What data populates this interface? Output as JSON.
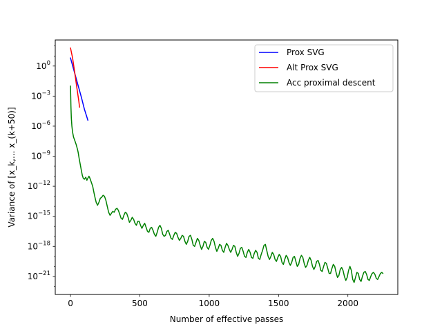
{
  "chart_data": {
    "type": "line",
    "title": "",
    "xlabel": "Number of effective passes",
    "ylabel": "Variance of [x_k,... x_(k+50)]",
    "xlim": [
      -110,
      2360
    ],
    "ylim_log10": [
      -22.8,
      2.6
    ],
    "yscale": "log",
    "grid": false,
    "legend_position": "upper-right",
    "x_ticks": [
      0,
      500,
      1000,
      1500,
      2000
    ],
    "y_ticks": [
      {
        "exp": 0,
        "label": "10",
        "sup": "0"
      },
      {
        "exp": -3,
        "label": "10",
        "sup": "−3"
      },
      {
        "exp": -6,
        "label": "10",
        "sup": "−6"
      },
      {
        "exp": -9,
        "label": "10",
        "sup": "−9"
      },
      {
        "exp": -12,
        "label": "10",
        "sup": "−12"
      },
      {
        "exp": -15,
        "label": "10",
        "sup": "−15"
      },
      {
        "exp": -18,
        "label": "10",
        "sup": "−18"
      },
      {
        "exp": -21,
        "label": "10",
        "sup": "−21"
      }
    ],
    "series": [
      {
        "name": "Prox SVG",
        "color": "#0000ff",
        "points": [
          [
            0,
            0.8
          ],
          [
            20,
            -0.2
          ],
          [
            40,
            -1.2
          ],
          [
            60,
            -2.2
          ],
          [
            80,
            -3.2
          ],
          [
            100,
            -4.3
          ],
          [
            125,
            -5.4
          ]
        ]
      },
      {
        "name": "Alt Prox SVG",
        "color": "#ff0000",
        "points": [
          [
            0,
            1.8
          ],
          [
            15,
            0.8
          ],
          [
            30,
            -0.6
          ],
          [
            45,
            -2.1
          ],
          [
            60,
            -3.5
          ],
          [
            65,
            -4.1
          ]
        ]
      },
      {
        "name": "Acc proximal descent",
        "color": "#008000",
        "points": [
          [
            0,
            -2.0
          ],
          [
            3,
            -4.0
          ],
          [
            6,
            -5.2
          ],
          [
            10,
            -6.0
          ],
          [
            15,
            -6.6
          ],
          [
            22,
            -7.1
          ],
          [
            30,
            -7.4
          ],
          [
            40,
            -7.8
          ],
          [
            50,
            -8.3
          ],
          [
            55,
            -8.6
          ],
          [
            62,
            -9.2
          ],
          [
            70,
            -9.8
          ],
          [
            78,
            -10.4
          ],
          [
            85,
            -10.9
          ],
          [
            92,
            -11.2
          ],
          [
            100,
            -11.3
          ],
          [
            110,
            -11.1
          ],
          [
            118,
            -11.4
          ],
          [
            125,
            -11.2
          ],
          [
            133,
            -11.0
          ],
          [
            140,
            -11.2
          ],
          [
            150,
            -11.6
          ],
          [
            160,
            -12.0
          ],
          [
            170,
            -12.7
          ],
          [
            178,
            -13.2
          ],
          [
            185,
            -13.6
          ],
          [
            195,
            -13.9
          ],
          [
            205,
            -13.6
          ],
          [
            215,
            -13.2
          ],
          [
            225,
            -13.1
          ],
          [
            235,
            -12.9
          ],
          [
            245,
            -13.0
          ],
          [
            255,
            -13.4
          ],
          [
            265,
            -14.0
          ],
          [
            275,
            -14.6
          ],
          [
            285,
            -14.9
          ],
          [
            295,
            -14.7
          ],
          [
            305,
            -14.5
          ],
          [
            315,
            -14.6
          ],
          [
            325,
            -14.3
          ],
          [
            335,
            -14.2
          ],
          [
            345,
            -14.4
          ],
          [
            355,
            -14.8
          ],
          [
            365,
            -15.2
          ],
          [
            375,
            -15.3
          ],
          [
            385,
            -14.9
          ],
          [
            395,
            -14.6
          ],
          [
            405,
            -14.7
          ],
          [
            415,
            -15.1
          ],
          [
            425,
            -15.6
          ],
          [
            435,
            -15.4
          ],
          [
            445,
            -15.1
          ],
          [
            455,
            -15.3
          ],
          [
            465,
            -15.7
          ],
          [
            475,
            -15.9
          ],
          [
            485,
            -15.5
          ],
          [
            495,
            -15.5
          ],
          [
            505,
            -15.9
          ],
          [
            515,
            -16.2
          ],
          [
            525,
            -15.9
          ],
          [
            535,
            -15.7
          ],
          [
            545,
            -16.1
          ],
          [
            555,
            -16.5
          ],
          [
            565,
            -16.6
          ],
          [
            575,
            -16.2
          ],
          [
            585,
            -16.1
          ],
          [
            595,
            -16.4
          ],
          [
            605,
            -16.8
          ],
          [
            615,
            -17.0
          ],
          [
            625,
            -16.6
          ],
          [
            635,
            -16.1
          ],
          [
            645,
            -15.9
          ],
          [
            655,
            -16.2
          ],
          [
            665,
            -16.8
          ],
          [
            675,
            -17.0
          ],
          [
            685,
            -16.9
          ],
          [
            695,
            -16.5
          ],
          [
            705,
            -16.4
          ],
          [
            715,
            -16.8
          ],
          [
            725,
            -17.2
          ],
          [
            735,
            -17.3
          ],
          [
            745,
            -16.9
          ],
          [
            755,
            -16.6
          ],
          [
            765,
            -16.7
          ],
          [
            775,
            -17.1
          ],
          [
            785,
            -17.4
          ],
          [
            795,
            -17.2
          ],
          [
            805,
            -16.9
          ],
          [
            815,
            -17.0
          ],
          [
            825,
            -17.5
          ],
          [
            835,
            -17.8
          ],
          [
            845,
            -17.5
          ],
          [
            855,
            -17.0
          ],
          [
            865,
            -16.9
          ],
          [
            875,
            -17.3
          ],
          [
            885,
            -17.9
          ],
          [
            895,
            -18.0
          ],
          [
            905,
            -17.6
          ],
          [
            915,
            -17.2
          ],
          [
            925,
            -17.4
          ],
          [
            935,
            -17.9
          ],
          [
            945,
            -18.3
          ],
          [
            955,
            -18.0
          ],
          [
            965,
            -17.5
          ],
          [
            975,
            -17.6
          ],
          [
            985,
            -18.1
          ],
          [
            995,
            -18.3
          ],
          [
            1005,
            -17.9
          ],
          [
            1015,
            -17.4
          ],
          [
            1025,
            -17.2
          ],
          [
            1035,
            -17.5
          ],
          [
            1045,
            -18.1
          ],
          [
            1055,
            -18.5
          ],
          [
            1065,
            -18.2
          ],
          [
            1075,
            -17.8
          ],
          [
            1085,
            -17.9
          ],
          [
            1095,
            -18.4
          ],
          [
            1105,
            -18.6
          ],
          [
            1115,
            -18.1
          ],
          [
            1125,
            -17.7
          ],
          [
            1135,
            -17.9
          ],
          [
            1145,
            -18.3
          ],
          [
            1155,
            -18.6
          ],
          [
            1165,
            -18.3
          ],
          [
            1175,
            -17.9
          ],
          [
            1185,
            -18.0
          ],
          [
            1195,
            -18.6
          ],
          [
            1205,
            -19.0
          ],
          [
            1215,
            -18.7
          ],
          [
            1225,
            -18.2
          ],
          [
            1235,
            -18.1
          ],
          [
            1245,
            -18.5
          ],
          [
            1255,
            -19.0
          ],
          [
            1265,
            -19.1
          ],
          [
            1275,
            -18.6
          ],
          [
            1285,
            -18.3
          ],
          [
            1295,
            -18.6
          ],
          [
            1305,
            -19.1
          ],
          [
            1315,
            -19.2
          ],
          [
            1325,
            -18.7
          ],
          [
            1335,
            -18.4
          ],
          [
            1345,
            -18.6
          ],
          [
            1355,
            -19.2
          ],
          [
            1365,
            -19.3
          ],
          [
            1375,
            -18.8
          ],
          [
            1385,
            -18.4
          ],
          [
            1395,
            -17.9
          ],
          [
            1405,
            -17.8
          ],
          [
            1415,
            -18.4
          ],
          [
            1425,
            -19.0
          ],
          [
            1435,
            -19.3
          ],
          [
            1445,
            -19.0
          ],
          [
            1455,
            -18.6
          ],
          [
            1465,
            -18.8
          ],
          [
            1475,
            -19.3
          ],
          [
            1485,
            -19.5
          ],
          [
            1495,
            -19.1
          ],
          [
            1505,
            -18.8
          ],
          [
            1515,
            -19.0
          ],
          [
            1525,
            -19.6
          ],
          [
            1535,
            -19.8
          ],
          [
            1545,
            -19.3
          ],
          [
            1555,
            -18.9
          ],
          [
            1565,
            -19.1
          ],
          [
            1575,
            -19.6
          ],
          [
            1585,
            -19.9
          ],
          [
            1595,
            -19.6
          ],
          [
            1605,
            -19.1
          ],
          [
            1615,
            -19.0
          ],
          [
            1625,
            -19.5
          ],
          [
            1635,
            -20.0
          ],
          [
            1645,
            -19.8
          ],
          [
            1655,
            -19.2
          ],
          [
            1665,
            -18.9
          ],
          [
            1675,
            -19.1
          ],
          [
            1685,
            -19.7
          ],
          [
            1695,
            -20.1
          ],
          [
            1705,
            -19.9
          ],
          [
            1715,
            -19.4
          ],
          [
            1725,
            -19.1
          ],
          [
            1735,
            -19.4
          ],
          [
            1745,
            -20.0
          ],
          [
            1755,
            -20.3
          ],
          [
            1765,
            -20.0
          ],
          [
            1775,
            -19.5
          ],
          [
            1785,
            -19.4
          ],
          [
            1795,
            -19.8
          ],
          [
            1805,
            -20.4
          ],
          [
            1815,
            -20.5
          ],
          [
            1825,
            -20.0
          ],
          [
            1835,
            -19.6
          ],
          [
            1845,
            -19.7
          ],
          [
            1855,
            -20.2
          ],
          [
            1865,
            -20.7
          ],
          [
            1875,
            -20.7
          ],
          [
            1885,
            -20.2
          ],
          [
            1895,
            -19.8
          ],
          [
            1905,
            -20.0
          ],
          [
            1915,
            -20.6
          ],
          [
            1925,
            -21.1
          ],
          [
            1935,
            -20.9
          ],
          [
            1945,
            -20.3
          ],
          [
            1955,
            -20.1
          ],
          [
            1965,
            -20.4
          ],
          [
            1975,
            -21.0
          ],
          [
            1985,
            -21.4
          ],
          [
            1995,
            -21.1
          ],
          [
            2005,
            -20.4
          ],
          [
            2015,
            -20.0
          ],
          [
            2025,
            -20.4
          ],
          [
            2035,
            -21.3
          ],
          [
            2045,
            -21.6
          ],
          [
            2055,
            -21.1
          ],
          [
            2065,
            -20.6
          ],
          [
            2075,
            -20.7
          ],
          [
            2085,
            -21.3
          ],
          [
            2095,
            -21.5
          ],
          [
            2105,
            -21.0
          ],
          [
            2115,
            -20.6
          ],
          [
            2125,
            -20.5
          ],
          [
            2135,
            -20.8
          ],
          [
            2145,
            -21.3
          ],
          [
            2155,
            -21.4
          ],
          [
            2165,
            -21.0
          ],
          [
            2175,
            -20.7
          ],
          [
            2185,
            -20.6
          ],
          [
            2195,
            -20.8
          ],
          [
            2205,
            -21.2
          ],
          [
            2215,
            -21.3
          ],
          [
            2225,
            -21.0
          ],
          [
            2235,
            -20.7
          ],
          [
            2245,
            -20.6
          ],
          [
            2252,
            -20.7
          ]
        ]
      }
    ]
  }
}
